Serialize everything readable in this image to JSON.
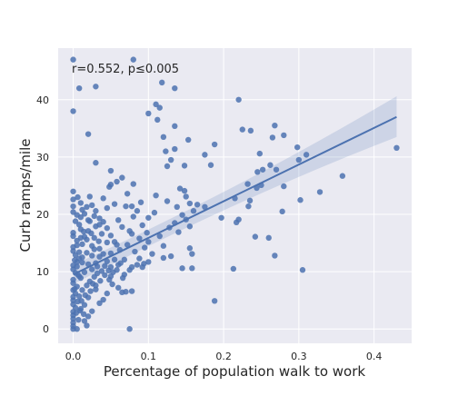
{
  "chart_data": {
    "type": "scatter",
    "annotation": "r=0.552, p≤0.005",
    "xlabel": "Percentage of population walk to work",
    "ylabel": "Curb ramps/mile",
    "xlim": [
      -0.02,
      0.45
    ],
    "ylim": [
      -2.5,
      49
    ],
    "xticks": [
      "0.0",
      "0.1",
      "0.2",
      "0.3",
      "0.4"
    ],
    "xtick_values": [
      0.0,
      0.1,
      0.2,
      0.3,
      0.4
    ],
    "yticks": [
      "0",
      "10",
      "20",
      "30",
      "40"
    ],
    "ytick_values": [
      0,
      10,
      20,
      30,
      40
    ],
    "grid": true,
    "background": "#eaeaf2",
    "point_color": "#4c72b0",
    "regression": {
      "x": [
        0.0,
        0.43
      ],
      "y": [
        9.5,
        37.0
      ],
      "ci_lower": [
        7.8,
        33.5
      ],
      "ci_upper": [
        11.2,
        40.6
      ]
    },
    "points": [
      [
        0.0,
        47
      ],
      [
        0.0,
        38
      ],
      [
        0.008,
        42
      ],
      [
        0.03,
        42.3
      ],
      [
        0.02,
        34
      ],
      [
        0.03,
        29
      ],
      [
        0.0,
        24
      ],
      [
        0.01,
        22
      ],
      [
        0.08,
        47
      ],
      [
        0.118,
        43
      ],
      [
        0.1,
        37.6
      ],
      [
        0.115,
        38.6
      ],
      [
        0.112,
        36.5
      ],
      [
        0.11,
        39.2
      ],
      [
        0.135,
        42
      ],
      [
        0.12,
        33.5
      ],
      [
        0.135,
        31.4
      ],
      [
        0.153,
        33
      ],
      [
        0.135,
        35.4
      ],
      [
        0.123,
        31
      ],
      [
        0.13,
        29.5
      ],
      [
        0.125,
        28.4
      ],
      [
        0.148,
        28.5
      ],
      [
        0.175,
        30.4
      ],
      [
        0.188,
        32.2
      ],
      [
        0.183,
        28.6
      ],
      [
        0.22,
        40
      ],
      [
        0.225,
        34.8
      ],
      [
        0.236,
        34.6
      ],
      [
        0.268,
        35.5
      ],
      [
        0.265,
        33.4
      ],
      [
        0.28,
        33.8
      ],
      [
        0.298,
        31.7
      ],
      [
        0.31,
        30.4
      ],
      [
        0.248,
        30.6
      ],
      [
        0.252,
        27.8
      ],
      [
        0.262,
        28.6
      ],
      [
        0.27,
        27.8
      ],
      [
        0.245,
        27.4
      ],
      [
        0.3,
        29.5
      ],
      [
        0.358,
        26.7
      ],
      [
        0.43,
        31.6
      ],
      [
        0.328,
        23.9
      ],
      [
        0.302,
        22.5
      ],
      [
        0.28,
        24.9
      ],
      [
        0.25,
        25.1
      ],
      [
        0.244,
        24.6
      ],
      [
        0.232,
        25.3
      ],
      [
        0.215,
        22.8
      ],
      [
        0.233,
        21.4
      ],
      [
        0.235,
        22.4
      ],
      [
        0.22,
        19.1
      ],
      [
        0.217,
        18.6
      ],
      [
        0.197,
        19.4
      ],
      [
        0.278,
        20.5
      ],
      [
        0.242,
        16.1
      ],
      [
        0.26,
        15.9
      ],
      [
        0.268,
        12.8
      ],
      [
        0.213,
        10.5
      ],
      [
        0.305,
        10.3
      ],
      [
        0.188,
        4.9
      ],
      [
        0.075,
        0.0
      ],
      [
        0.05,
        27.6
      ],
      [
        0.05,
        25.2
      ],
      [
        0.058,
        25.7
      ],
      [
        0.055,
        21.8
      ],
      [
        0.065,
        26.4
      ],
      [
        0.07,
        21.4
      ],
      [
        0.065,
        17.8
      ],
      [
        0.075,
        17.1
      ],
      [
        0.078,
        16.6
      ],
      [
        0.092,
        18.1
      ],
      [
        0.098,
        16.8
      ],
      [
        0.1,
        15.2
      ],
      [
        0.115,
        16.2
      ],
      [
        0.12,
        14.5
      ],
      [
        0.128,
        17.7
      ],
      [
        0.135,
        18.5
      ],
      [
        0.14,
        16.9
      ],
      [
        0.11,
        23.3
      ],
      [
        0.125,
        22.3
      ],
      [
        0.138,
        21.3
      ],
      [
        0.142,
        24.5
      ],
      [
        0.148,
        24.1
      ],
      [
        0.15,
        23.1
      ],
      [
        0.155,
        21.9
      ],
      [
        0.16,
        20.6
      ],
      [
        0.165,
        21.7
      ],
      [
        0.175,
        21.3
      ],
      [
        0.145,
        19.9
      ],
      [
        0.15,
        19.1
      ],
      [
        0.155,
        17.9
      ],
      [
        0.155,
        14.1
      ],
      [
        0.158,
        13.1
      ],
      [
        0.145,
        10.6
      ],
      [
        0.158,
        10.6
      ],
      [
        0.13,
        12.7
      ],
      [
        0.12,
        12.4
      ],
      [
        0.105,
        13.1
      ],
      [
        0.1,
        11.7
      ],
      [
        0.092,
        10.8
      ],
      [
        0.085,
        11.2
      ],
      [
        0.075,
        10.3
      ],
      [
        0.068,
        9.5
      ],
      [
        0.07,
        6.5
      ],
      [
        0.065,
        6.4
      ],
      [
        0.078,
        6.6
      ],
      [
        0.06,
        7.2
      ],
      [
        0.06,
        11.2
      ],
      [
        0.055,
        12.1
      ],
      [
        0.05,
        10.8
      ],
      [
        0.045,
        11.8
      ],
      [
        0.04,
        13.1
      ],
      [
        0.035,
        12.6
      ],
      [
        0.03,
        11.5
      ],
      [
        0.028,
        15.9
      ],
      [
        0.025,
        14.5
      ],
      [
        0.02,
        17.1
      ],
      [
        0.018,
        15.6
      ],
      [
        0.015,
        16.1
      ],
      [
        0.012,
        14.8
      ],
      [
        0.01,
        17.4
      ],
      [
        0.01,
        19.5
      ],
      [
        0.015,
        20.1
      ],
      [
        0.018,
        21.3
      ],
      [
        0.022,
        23.1
      ],
      [
        0.025,
        21.6
      ],
      [
        0.03,
        20.6
      ],
      [
        0.035,
        19.3
      ],
      [
        0.04,
        18.7
      ],
      [
        0.045,
        17.6
      ],
      [
        0.05,
        16.3
      ],
      [
        0.055,
        15.2
      ],
      [
        0.058,
        14.7
      ],
      [
        0.04,
        22.8
      ],
      [
        0.045,
        21.1
      ],
      [
        0.048,
        24.8
      ],
      [
        0.035,
        18.2
      ],
      [
        0.038,
        16.6
      ],
      [
        0.03,
        17.9
      ],
      [
        0.005,
        19.9
      ],
      [
        0.0,
        21.4
      ],
      [
        0.0,
        20.4
      ],
      [
        0.003,
        18.8
      ],
      [
        0.0,
        16.8
      ],
      [
        0.0,
        16.2
      ],
      [
        0.005,
        15.4
      ],
      [
        0.0,
        14.3
      ],
      [
        0.0,
        13.6
      ],
      [
        0.003,
        12.9
      ],
      [
        0.008,
        12.3
      ],
      [
        0.012,
        11.6
      ],
      [
        0.0,
        11.1
      ],
      [
        0.0,
        10.4
      ],
      [
        0.003,
        9.8
      ],
      [
        0.008,
        9.2
      ],
      [
        0.0,
        8.6
      ],
      [
        0.0,
        8.0
      ],
      [
        0.005,
        7.4
      ],
      [
        0.0,
        6.8
      ],
      [
        0.003,
        6.2
      ],
      [
        0.0,
        5.6
      ],
      [
        0.0,
        5.0
      ],
      [
        0.0,
        4.3
      ],
      [
        0.003,
        3.7
      ],
      [
        0.0,
        3.0
      ],
      [
        0.0,
        2.4
      ],
      [
        0.0,
        1.8
      ],
      [
        0.0,
        1.1
      ],
      [
        0.0,
        0.5
      ],
      [
        0.0,
        0.0
      ],
      [
        0.005,
        0.0
      ],
      [
        0.01,
        3.5
      ],
      [
        0.015,
        4.2
      ],
      [
        0.02,
        5.5
      ],
      [
        0.015,
        1.4
      ],
      [
        0.018,
        0.6
      ],
      [
        0.02,
        2.2
      ],
      [
        0.025,
        3.1
      ],
      [
        0.012,
        6.8
      ],
      [
        0.018,
        7.6
      ],
      [
        0.022,
        8.3
      ],
      [
        0.028,
        9.1
      ],
      [
        0.032,
        9.7
      ],
      [
        0.025,
        10.4
      ],
      [
        0.02,
        11.3
      ],
      [
        0.012,
        12.5
      ],
      [
        0.018,
        13.3
      ],
      [
        0.025,
        12.8
      ],
      [
        0.032,
        10.9
      ],
      [
        0.038,
        10.1
      ],
      [
        0.042,
        9.4
      ],
      [
        0.048,
        8.6
      ],
      [
        0.052,
        7.8
      ],
      [
        0.045,
        6.2
      ],
      [
        0.04,
        5.1
      ],
      [
        0.035,
        4.5
      ],
      [
        0.03,
        6.9
      ],
      [
        0.026,
        7.9
      ],
      [
        0.008,
        5.7
      ],
      [
        0.01,
        8.9
      ],
      [
        0.015,
        9.9
      ],
      [
        0.005,
        10.9
      ],
      [
        0.005,
        11.7
      ],
      [
        0.008,
        13.4
      ],
      [
        0.005,
        14.6
      ],
      [
        0.01,
        15.9
      ],
      [
        0.014,
        17.0
      ],
      [
        0.008,
        18.2
      ],
      [
        0.022,
        18.8
      ],
      [
        0.028,
        19.7
      ],
      [
        0.06,
        19.0
      ],
      [
        0.062,
        13.8
      ],
      [
        0.068,
        12.1
      ],
      [
        0.072,
        14.7
      ],
      [
        0.082,
        13.5
      ],
      [
        0.088,
        15.8
      ],
      [
        0.095,
        14.2
      ],
      [
        0.08,
        19.6
      ],
      [
        0.085,
        20.6
      ],
      [
        0.09,
        22.1
      ],
      [
        0.072,
        23.6
      ],
      [
        0.08,
        25.3
      ],
      [
        0.078,
        21.4
      ],
      [
        0.1,
        19.4
      ],
      [
        0.108,
        20.3
      ],
      [
        0.045,
        15.1
      ],
      [
        0.05,
        13.2
      ],
      [
        0.035,
        14.0
      ],
      [
        0.028,
        13.9
      ],
      [
        0.002,
        12.0
      ],
      [
        0.006,
        9.5
      ],
      [
        0.002,
        7.0
      ],
      [
        0.006,
        4.8
      ],
      [
        0.004,
        2.8
      ],
      [
        0.007,
        1.6
      ],
      [
        0.006,
        23.0
      ],
      [
        0.0,
        22.6
      ],
      [
        0.012,
        20.8
      ],
      [
        0.02,
        19.0
      ],
      [
        0.024,
        16.7
      ],
      [
        0.034,
        15.3
      ],
      [
        0.042,
        11.0
      ],
      [
        0.047,
        10.2
      ],
      [
        0.053,
        9.9
      ],
      [
        0.058,
        10.3
      ],
      [
        0.063,
        11.5
      ],
      [
        0.078,
        10.8
      ],
      [
        0.088,
        12.3
      ],
      [
        0.094,
        11.4
      ],
      [
        0.066,
        8.9
      ],
      [
        0.05,
        9.2
      ],
      [
        0.036,
        8.4
      ],
      [
        0.03,
        7.6
      ],
      [
        0.023,
        6.6
      ],
      [
        0.016,
        5.9
      ],
      [
        0.011,
        4.9
      ],
      [
        0.009,
        3.2
      ],
      [
        0.014,
        2.6
      ]
    ]
  }
}
